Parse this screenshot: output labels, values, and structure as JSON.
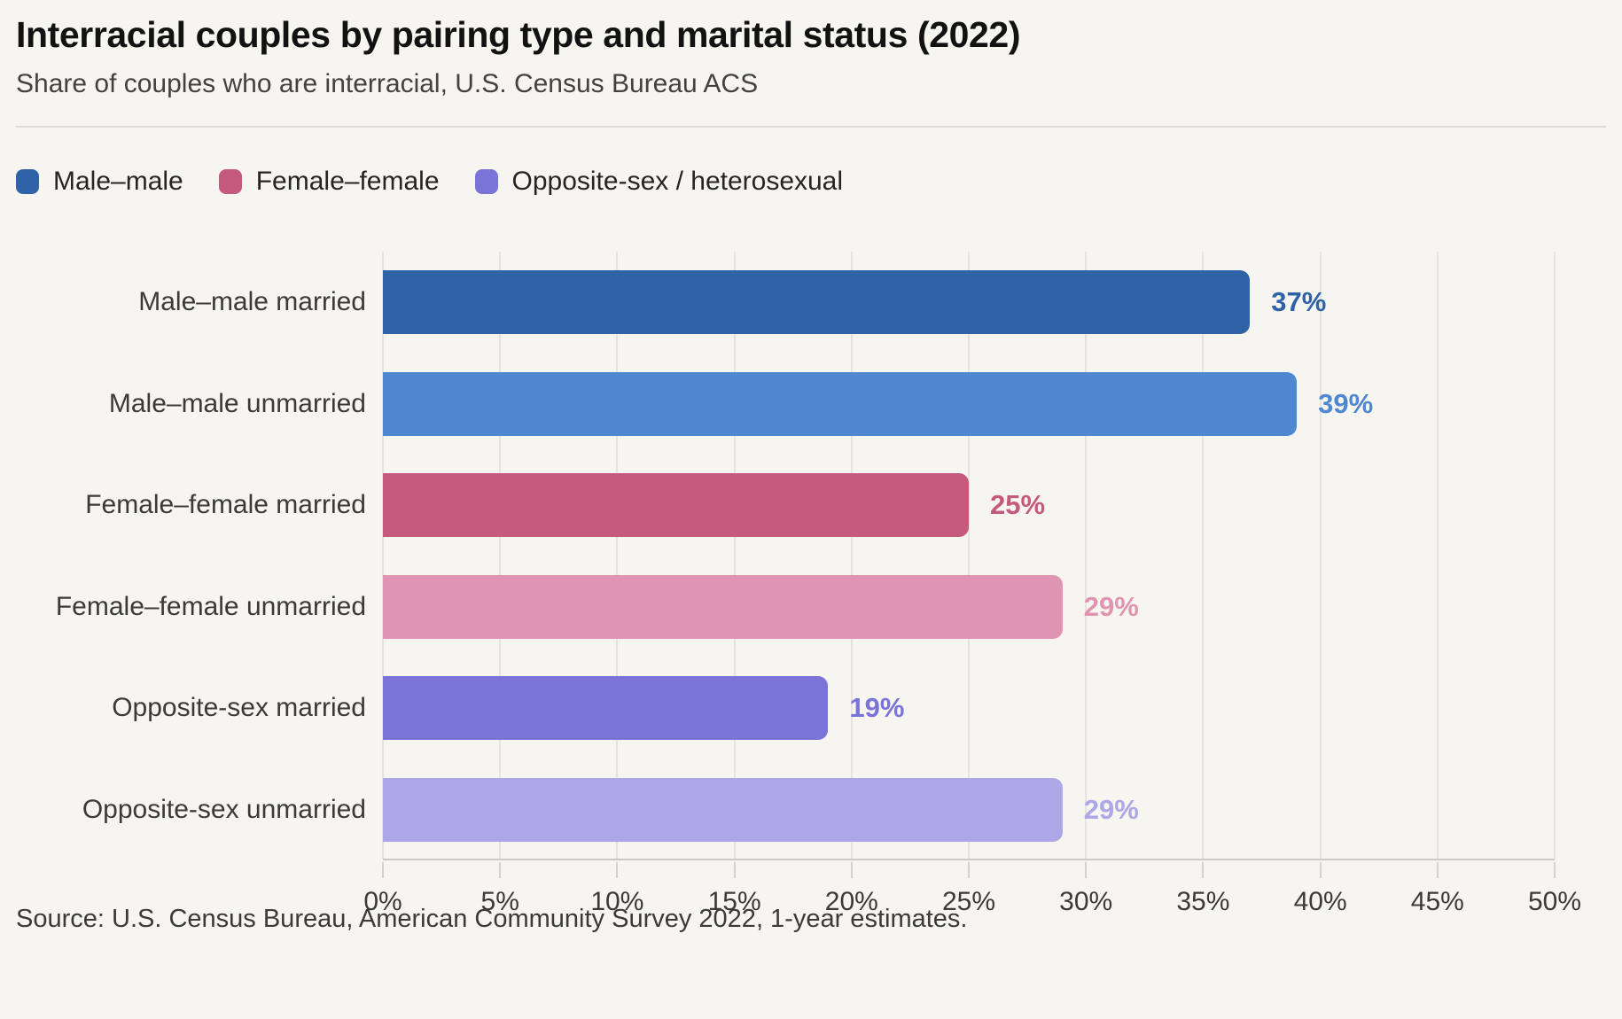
{
  "header": {
    "title": "Interracial couples by pairing type and marital status (2022)",
    "subtitle": "Share of couples who are interracial, U.S. Census Bureau ACS"
  },
  "legend": [
    {
      "label": "Male–male",
      "color": "#2f62a6"
    },
    {
      "label": "Female–female",
      "color": "#c45b7e"
    },
    {
      "label": "Opposite-sex / heterosexual",
      "color": "#7b74d8"
    }
  ],
  "chart_data": {
    "type": "bar",
    "orientation": "horizontal",
    "title": "Interracial couples by pairing type and marital status (2022)",
    "subtitle": "Share of couples who are interracial, U.S. Census Bureau ACS",
    "categories": [
      "Male–male married",
      "Male–male unmarried",
      "Female–female married",
      "Female–female unmarried",
      "Opposite-sex married",
      "Opposite-sex unmarried"
    ],
    "values": [
      37,
      39,
      25,
      29,
      19,
      29
    ],
    "value_labels": [
      "37%",
      "39%",
      "25%",
      "29%",
      "19%",
      "29%"
    ],
    "bar_colors": [
      "#2f62a6",
      "#4f87d0",
      "#c45b7e",
      "#df94b2",
      "#7b74d8",
      "#ada7e7"
    ],
    "series_of_bar": [
      "Male–male",
      "Male–male",
      "Female–female",
      "Female–female",
      "Opposite-sex / heterosexual",
      "Opposite-sex / heterosexual"
    ],
    "xlabel": "",
    "ylabel": "",
    "xlim": [
      0,
      50
    ],
    "x_tick_values": [
      0,
      5,
      10,
      15,
      20,
      25,
      30,
      35,
      40,
      45,
      50
    ],
    "x_tick_labels": [
      "0%",
      "5%",
      "10%",
      "15%",
      "20%",
      "25%",
      "30%",
      "35%",
      "40%",
      "45%",
      "50%"
    ],
    "grid": true,
    "legend_position": "top"
  },
  "footer": {
    "source": "Source: U.S. Census Bureau, American Community Survey 2022, 1-year estimates."
  }
}
